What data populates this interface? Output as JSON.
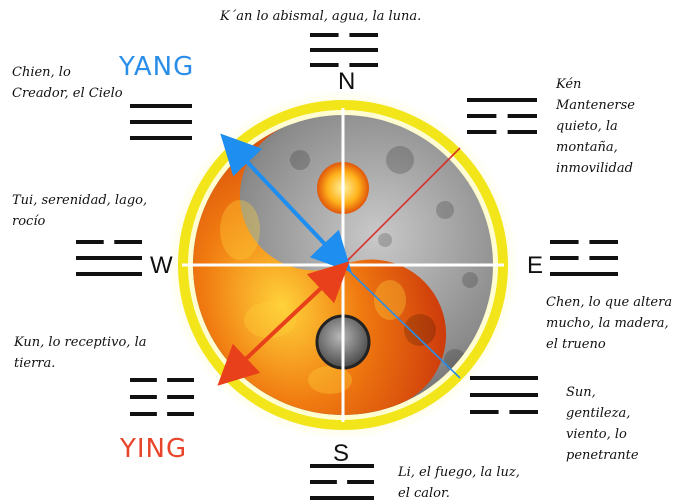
{
  "colors": {
    "yang": "#2a8ee8",
    "ying": "#e8442a",
    "ring": "#f2e61a",
    "fire_dark": "#c8300a",
    "fire_mid": "#f07a10",
    "fire_light": "#ffd23a",
    "moon_dark": "#3a3a3a",
    "moon_mid": "#8a8a8a",
    "moon_light": "#c9c9c9",
    "arrow_blue": "#1e8ef0",
    "arrow_red": "#e8401a"
  },
  "directions": {
    "n": "N",
    "s": "S",
    "e": "E",
    "w": "W"
  },
  "yang_label": "YANG",
  "ying_label": "YING",
  "trigrams": {
    "top": {
      "text": "K´an lo abismal, agua, la luna.",
      "lines": [
        "broken",
        "solid",
        "broken"
      ]
    },
    "top_left": {
      "text": "Chien, lo\nCreador, el Cielo",
      "lines": [
        "solid",
        "solid",
        "solid"
      ]
    },
    "top_right": {
      "text": "Kén\nMantenerse\nquieto, la\nmontaña,\ninmovilidad",
      "lines": [
        "solid",
        "broken",
        "broken"
      ]
    },
    "left": {
      "text": "Tui, serenidad, lago,\nrocío",
      "lines": [
        "broken",
        "solid",
        "solid"
      ]
    },
    "right": {
      "text": "Chen, lo que altera\nmucho, la madera,\nel trueno",
      "lines": [
        "broken",
        "broken",
        "solid"
      ]
    },
    "bottom_left": {
      "text": "Kun, lo receptivo, la\ntierra.",
      "lines": [
        "broken",
        "broken",
        "broken"
      ]
    },
    "bottom_right": {
      "text": "Sun,\ngentileza,\nviento, lo\npenetrante",
      "lines": [
        "solid",
        "solid",
        "broken"
      ]
    },
    "bottom": {
      "text": "Li, el fuego, la luz,\nel calor.",
      "lines": [
        "solid",
        "broken",
        "solid"
      ]
    }
  }
}
